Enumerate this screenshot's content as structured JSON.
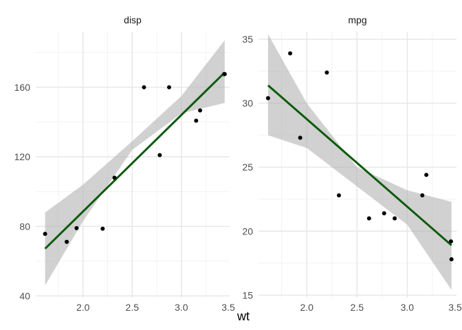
{
  "chart_data": {
    "type": "scatter",
    "xlabel": "wt",
    "xlim": [
      1.52,
      3.49
    ],
    "xticks": [
      2.0,
      2.5,
      3.0,
      3.5
    ],
    "xtick_labels": [
      "2.0",
      "2.5",
      "3.0",
      "3.5"
    ],
    "grid": true,
    "colors": {
      "point": "#000000",
      "fit_line": "#0a5a0a",
      "ribbon": "#b3b3b3",
      "grid_major": "#e6e6e6",
      "grid_minor": "#f2f2f2"
    },
    "facets": [
      {
        "strip": "disp",
        "ylim": [
          39,
          192
        ],
        "yticks": [
          40,
          80,
          120,
          160
        ],
        "ytick_labels": [
          "40",
          "80",
          "120",
          "160"
        ],
        "points": [
          {
            "x": 1.615,
            "y": 75.7
          },
          {
            "x": 1.835,
            "y": 71.1
          },
          {
            "x": 1.935,
            "y": 79.0
          },
          {
            "x": 2.2,
            "y": 78.7
          },
          {
            "x": 2.32,
            "y": 108.0
          },
          {
            "x": 2.62,
            "y": 160.0
          },
          {
            "x": 2.78,
            "y": 121.0
          },
          {
            "x": 2.875,
            "y": 160.0
          },
          {
            "x": 3.15,
            "y": 140.8
          },
          {
            "x": 3.19,
            "y": 146.7
          },
          {
            "x": 3.435,
            "y": 167.6
          },
          {
            "x": 3.44,
            "y": 167.6
          }
        ],
        "fit": {
          "x": [
            1.615,
            3.44
          ],
          "y": [
            67.2,
            168.5
          ]
        },
        "ribbon": {
          "x": [
            1.615,
            2.0,
            2.5,
            3.0,
            3.44
          ],
          "lower": [
            46.0,
            83.0,
            124.0,
            145.0,
            151.0
          ],
          "upper": [
            88.0,
            104.0,
            129.0,
            155.0,
            187.0
          ]
        }
      },
      {
        "strip": "mpg",
        "ylim": [
          14.8,
          35.6
        ],
        "yticks": [
          15,
          20,
          25,
          30,
          35
        ],
        "ytick_labels": [
          "15",
          "20",
          "25",
          "30",
          "35"
        ],
        "points": [
          {
            "x": 1.615,
            "y": 30.4
          },
          {
            "x": 1.835,
            "y": 33.9
          },
          {
            "x": 1.935,
            "y": 27.3
          },
          {
            "x": 2.2,
            "y": 32.4
          },
          {
            "x": 2.32,
            "y": 22.8
          },
          {
            "x": 2.62,
            "y": 21.0
          },
          {
            "x": 2.77,
            "y": 21.4
          },
          {
            "x": 2.875,
            "y": 21.0
          },
          {
            "x": 3.15,
            "y": 22.8
          },
          {
            "x": 3.19,
            "y": 24.4
          },
          {
            "x": 3.435,
            "y": 19.2
          },
          {
            "x": 3.44,
            "y": 17.8
          }
        ],
        "fit": {
          "x": [
            1.615,
            3.44
          ],
          "y": [
            31.4,
            18.9
          ]
        },
        "ribbon": {
          "x": [
            1.615,
            2.0,
            2.5,
            3.0,
            3.44
          ],
          "lower": [
            27.5,
            26.5,
            23.5,
            20.5,
            15.4
          ],
          "upper": [
            35.4,
            30.0,
            25.0,
            23.2,
            22.3
          ]
        }
      }
    ]
  }
}
